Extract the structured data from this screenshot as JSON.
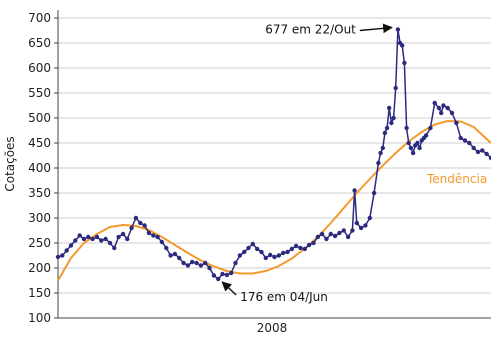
{
  "chart_data": {
    "type": "line",
    "title": "",
    "xlabel": "2008",
    "ylabel": "Cotações",
    "ylim": [
      100,
      700
    ],
    "yticks": [
      100,
      150,
      200,
      250,
      300,
      350,
      400,
      450,
      500,
      550,
      600,
      650,
      700
    ],
    "grid": true,
    "series": [
      {
        "name": "",
        "kind": "price",
        "color": "#2b2a7d",
        "x": [
          0,
          0.01,
          0.02,
          0.03,
          0.04,
          0.05,
          0.06,
          0.07,
          0.08,
          0.09,
          0.1,
          0.11,
          0.12,
          0.13,
          0.14,
          0.15,
          0.16,
          0.17,
          0.18,
          0.19,
          0.2,
          0.21,
          0.22,
          0.23,
          0.24,
          0.25,
          0.26,
          0.27,
          0.28,
          0.29,
          0.3,
          0.31,
          0.32,
          0.33,
          0.34,
          0.35,
          0.36,
          0.37,
          0.38,
          0.39,
          0.4,
          0.41,
          0.42,
          0.43,
          0.44,
          0.45,
          0.46,
          0.47,
          0.48,
          0.49,
          0.5,
          0.51,
          0.52,
          0.53,
          0.54,
          0.55,
          0.56,
          0.57,
          0.58,
          0.59,
          0.6,
          0.61,
          0.62,
          0.63,
          0.64,
          0.65,
          0.66,
          0.67,
          0.68,
          0.685,
          0.69,
          0.7,
          0.71,
          0.72,
          0.73,
          0.74,
          0.745,
          0.75,
          0.755,
          0.76,
          0.765,
          0.77,
          0.775,
          0.78,
          0.785,
          0.79,
          0.795,
          0.8,
          0.805,
          0.81,
          0.815,
          0.82,
          0.825,
          0.83,
          0.835,
          0.84,
          0.845,
          0.85,
          0.86,
          0.87,
          0.88,
          0.885,
          0.89,
          0.9,
          0.91,
          0.92,
          0.93,
          0.94,
          0.95,
          0.96,
          0.97,
          0.98,
          0.99,
          1.0
        ],
        "values": [
          222,
          225,
          235,
          245,
          255,
          265,
          258,
          262,
          258,
          262,
          255,
          258,
          250,
          240,
          262,
          268,
          258,
          280,
          300,
          290,
          285,
          270,
          265,
          262,
          252,
          240,
          225,
          228,
          220,
          210,
          205,
          212,
          210,
          205,
          210,
          200,
          185,
          178,
          188,
          186,
          190,
          210,
          225,
          232,
          240,
          248,
          238,
          232,
          220,
          226,
          222,
          225,
          230,
          232,
          238,
          244,
          240,
          238,
          246,
          250,
          262,
          268,
          258,
          268,
          264,
          270,
          275,
          262,
          275,
          355,
          290,
          280,
          285,
          300,
          350,
          410,
          430,
          440,
          470,
          480,
          520,
          490,
          500,
          560,
          677,
          650,
          645,
          610,
          480,
          450,
          440,
          430,
          445,
          450,
          440,
          455,
          460,
          465,
          480,
          530,
          520,
          510,
          525,
          520,
          510,
          490,
          460,
          455,
          450,
          440,
          432,
          435,
          428,
          420
        ]
      },
      {
        "name": "Tendência",
        "kind": "trend",
        "color": "#f39a2e",
        "x": [
          0,
          0.03,
          0.06,
          0.09,
          0.12,
          0.15,
          0.18,
          0.21,
          0.24,
          0.27,
          0.3,
          0.33,
          0.36,
          0.39,
          0.42,
          0.45,
          0.48,
          0.51,
          0.54,
          0.57,
          0.6,
          0.63,
          0.66,
          0.69,
          0.72,
          0.75,
          0.78,
          0.81,
          0.84,
          0.87,
          0.9,
          0.93,
          0.96,
          1.0
        ],
        "values": [
          175,
          220,
          250,
          268,
          282,
          286,
          284,
          276,
          262,
          246,
          230,
          215,
          203,
          194,
          189,
          189,
          194,
          204,
          219,
          239,
          262,
          290,
          320,
          350,
          378,
          405,
          430,
          453,
          472,
          487,
          494,
          493,
          482,
          450
        ]
      }
    ],
    "annotations": [
      {
        "label": "677 em 22/Out",
        "point_x": 0.785,
        "point_y": 677
      },
      {
        "label": "176 em 04/Jun",
        "point_x": 0.37,
        "point_y": 178
      }
    ]
  }
}
